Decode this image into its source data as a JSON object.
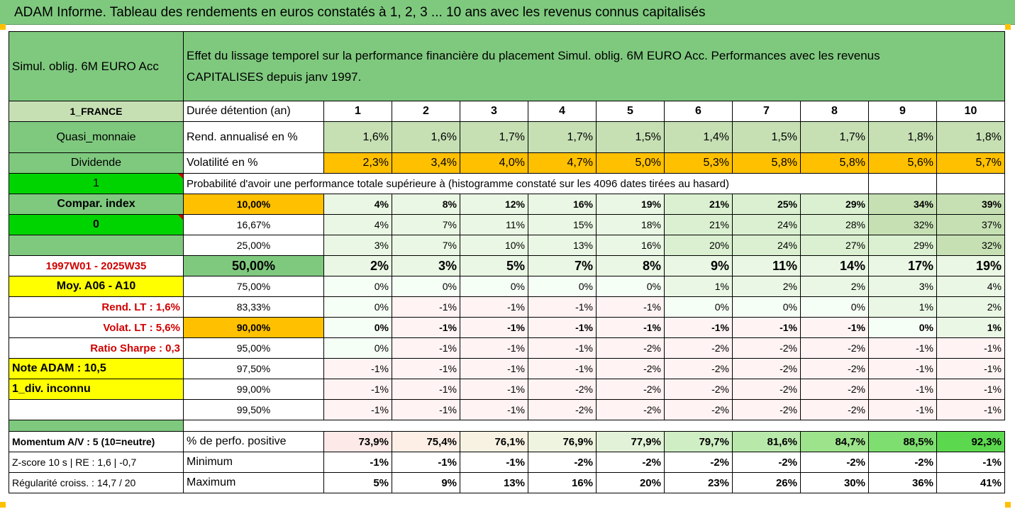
{
  "title": "ADAM Informe. Tableau des rendements en euros constatés à 1, 2, 3 ... 10 ans avec les revenus connus capitalisés",
  "header": {
    "fund": "Simul. oblig. 6M EURO Acc",
    "desc1": "Effet du lissage temporel sur la performance financière du placement Simul. oblig. 6M EURO Acc. Performances avec les revenus",
    "desc2": "CAPITALISES depuis janv 1997."
  },
  "rows": {
    "durees": {
      "left": "1_FRANCE",
      "label": "Durée détention (an)",
      "values": [
        "1",
        "2",
        "3",
        "4",
        "5",
        "6",
        "7",
        "8",
        "9",
        "10"
      ]
    },
    "rend": {
      "left": "Quasi_monnaie",
      "label": "Rend. annualisé en %",
      "values": [
        "1,6%",
        "1,6%",
        "1,7%",
        "1,7%",
        "1,5%",
        "1,4%",
        "1,5%",
        "1,7%",
        "1,8%",
        "1,8%"
      ]
    },
    "vol": {
      "left": "Dividende",
      "label": "Volatilité en %",
      "values": [
        "2,3%",
        "3,4%",
        "4,0%",
        "4,7%",
        "5,0%",
        "5,3%",
        "5,8%",
        "5,8%",
        "5,6%",
        "5,7%"
      ]
    },
    "proba": {
      "left": "1",
      "label": "Probabilité d'avoir une performance totale supérieure à (histogramme constaté sur les 4096 dates tirées au hasard)"
    }
  },
  "pct_rows": [
    {
      "left": "Compar. index",
      "pct": "10,00%",
      "values": [
        "4%",
        "8%",
        "12%",
        "16%",
        "19%",
        "21%",
        "25%",
        "29%",
        "34%",
        "39%"
      ]
    },
    {
      "left": "0",
      "pct": "16,67%",
      "values": [
        "4%",
        "7%",
        "11%",
        "15%",
        "18%",
        "21%",
        "24%",
        "28%",
        "32%",
        "37%"
      ]
    },
    {
      "left": "",
      "pct": "25,00%",
      "values": [
        "3%",
        "7%",
        "10%",
        "13%",
        "16%",
        "20%",
        "24%",
        "27%",
        "29%",
        "32%"
      ]
    },
    {
      "left": "1997W01 - 2025W35",
      "pct": "50,00%",
      "values": [
        "2%",
        "3%",
        "5%",
        "7%",
        "8%",
        "9%",
        "11%",
        "14%",
        "17%",
        "19%"
      ]
    },
    {
      "left": "Moy. A06 - A10",
      "pct": "75,00%",
      "values": [
        "0%",
        "0%",
        "0%",
        "0%",
        "0%",
        "1%",
        "2%",
        "2%",
        "3%",
        "4%"
      ]
    },
    {
      "left": "Rend. LT :   1,6%",
      "pct": "83,33%",
      "values": [
        "0%",
        "-1%",
        "-1%",
        "-1%",
        "-1%",
        "0%",
        "0%",
        "0%",
        "1%",
        "2%"
      ]
    },
    {
      "left": "Volat. LT :   5,6%",
      "pct": "90,00%",
      "values": [
        "0%",
        "-1%",
        "-1%",
        "-1%",
        "-1%",
        "-1%",
        "-1%",
        "-1%",
        "0%",
        "1%"
      ]
    },
    {
      "left": "Ratio Sharpe :   0,3",
      "pct": "95,00%",
      "values": [
        "0%",
        "-1%",
        "-1%",
        "-1%",
        "-2%",
        "-2%",
        "-2%",
        "-2%",
        "-1%",
        "-1%"
      ]
    },
    {
      "left": "Note ADAM : 10,5",
      "pct": "97,50%",
      "values": [
        "-1%",
        "-1%",
        "-1%",
        "-1%",
        "-2%",
        "-2%",
        "-2%",
        "-2%",
        "-1%",
        "-1%"
      ]
    },
    {
      "left": "1_div. inconnu",
      "pct": "99,00%",
      "values": [
        "-1%",
        "-1%",
        "-1%",
        "-2%",
        "-2%",
        "-2%",
        "-2%",
        "-2%",
        "-1%",
        "-1%"
      ]
    },
    {
      "left": "",
      "pct": "99,50%",
      "values": [
        "-1%",
        "-1%",
        "-1%",
        "-2%",
        "-2%",
        "-2%",
        "-2%",
        "-2%",
        "-1%",
        "-1%"
      ]
    }
  ],
  "footer_rows": [
    {
      "left": "Momentum A/V : 5 (10=neutre)",
      "label": "% de perfo. positive",
      "values": [
        "73,9%",
        "75,4%",
        "76,1%",
        "76,9%",
        "77,9%",
        "79,7%",
        "81,6%",
        "84,7%",
        "88,5%",
        "92,3%"
      ]
    },
    {
      "left": "Z-score 10 s  |  RE : 1,6  |  -0,7",
      "label": "Minimum",
      "values": [
        "-1%",
        "-1%",
        "-1%",
        "-2%",
        "-2%",
        "-2%",
        "-2%",
        "-2%",
        "-2%",
        "-1%"
      ]
    },
    {
      "left": "Régularité croiss. : 14,7 / 20",
      "label": "Maximum",
      "values": [
        "5%",
        "9%",
        "13%",
        "16%",
        "20%",
        "23%",
        "26%",
        "30%",
        "36%",
        "41%"
      ]
    }
  ],
  "colors": {
    "green": "#7fc97f",
    "light_green": "#c6e0b4",
    "orange": "#ffc000",
    "bright_green": "#00d400",
    "yellow": "#ffff00",
    "red_text": "#d00000"
  }
}
